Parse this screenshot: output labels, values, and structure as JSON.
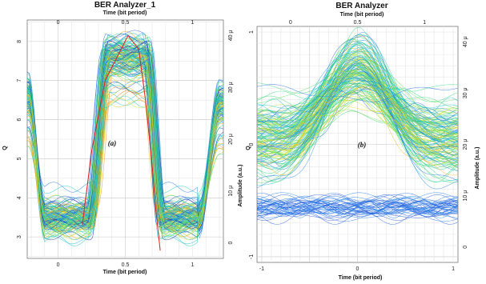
{
  "chart_data": [
    {
      "type": "eye-diagram",
      "title": "BER Analyzer_1",
      "xlabel": "Time (bit period)",
      "x2label": "Time (bit period)",
      "ylabel": "Q",
      "y2label": "Amplitude (a.u.)",
      "annotation": "(a)",
      "xticks": [
        "0",
        "0.5",
        "1"
      ],
      "x2ticks": [
        "0",
        "0.5",
        "1"
      ],
      "xlim": [
        -0.23,
        1.23
      ],
      "yticks": [
        "3",
        "4",
        "5",
        "6",
        "7",
        "8"
      ],
      "ylim": [
        2.45,
        8.55
      ],
      "y2ticks": [
        "0",
        "10 μ",
        "20 μ",
        "30 μ",
        "40 μ"
      ],
      "y2lim": [
        -3,
        43
      ],
      "q_curve": [
        [
          0.18,
          3.3
        ],
        [
          0.25,
          5.2
        ],
        [
          0.35,
          7.0
        ],
        [
          0.52,
          8.15
        ],
        [
          0.6,
          7.8
        ],
        [
          0.65,
          6.5
        ],
        [
          0.7,
          4.8
        ],
        [
          0.73,
          3.6
        ],
        [
          0.76,
          2.65
        ]
      ],
      "eye": {
        "low_level": 3.5,
        "high_level": 7.6,
        "rise_center": 0.3,
        "fall_center": 0.72,
        "rise_width": 0.13,
        "fall_width": 0.11
      },
      "grid": true
    },
    {
      "type": "eye-diagram",
      "title": "BER Analyzer",
      "xlabel": "Time (bit period)",
      "x2label": "Time (bit period)",
      "ylabel": "Q",
      "y2label": "Amplitude (a.u.)",
      "annotation": "(b)",
      "xticks": [
        "-1",
        "0",
        "1"
      ],
      "x2ticks": [
        "0",
        "0.5",
        "1"
      ],
      "xlim": [
        -1.05,
        1.05
      ],
      "yticks": [
        "-1",
        "0",
        "1"
      ],
      "ylim": [
        -1.05,
        1.05
      ],
      "y2ticks": [
        "0",
        "10 μ",
        "20 μ",
        "30 μ",
        "40 μ"
      ],
      "y2lim": [
        -3,
        43
      ],
      "eye": {
        "low_level": -0.57,
        "peak_center": 0.65,
        "side_level": 0.05
      },
      "grid": true
    }
  ]
}
